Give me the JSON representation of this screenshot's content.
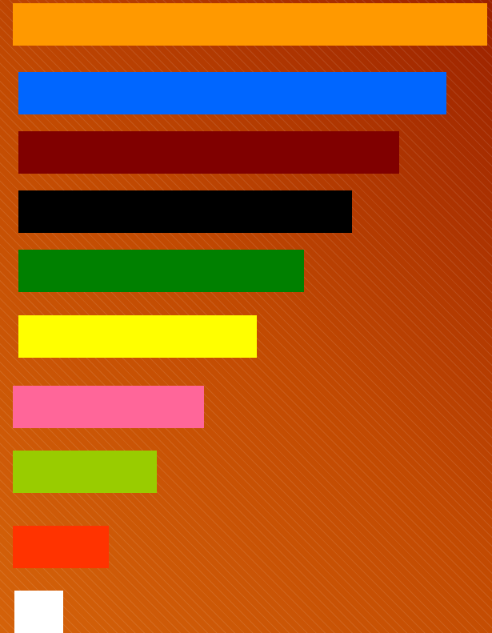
{
  "bars": [
    {
      "color": "#ff9900",
      "value": 10
    },
    {
      "color": "#0066ff",
      "value": 9
    },
    {
      "color": "#800000",
      "value": 8
    },
    {
      "color": "#000000",
      "value": 7
    },
    {
      "color": "#008000",
      "value": 6
    },
    {
      "color": "#ffff00",
      "value": 5
    },
    {
      "color": "#ff6699",
      "value": 4
    },
    {
      "color": "#99cc00",
      "value": 3
    },
    {
      "color": "#ff3300",
      "value": 2
    },
    {
      "color": "#ffffff",
      "value": 1
    }
  ],
  "background": {
    "gradient_colors": [
      "#d4620a",
      "#c24a02",
      "#9c2200"
    ],
    "pattern": "diagonal-stripes"
  }
}
